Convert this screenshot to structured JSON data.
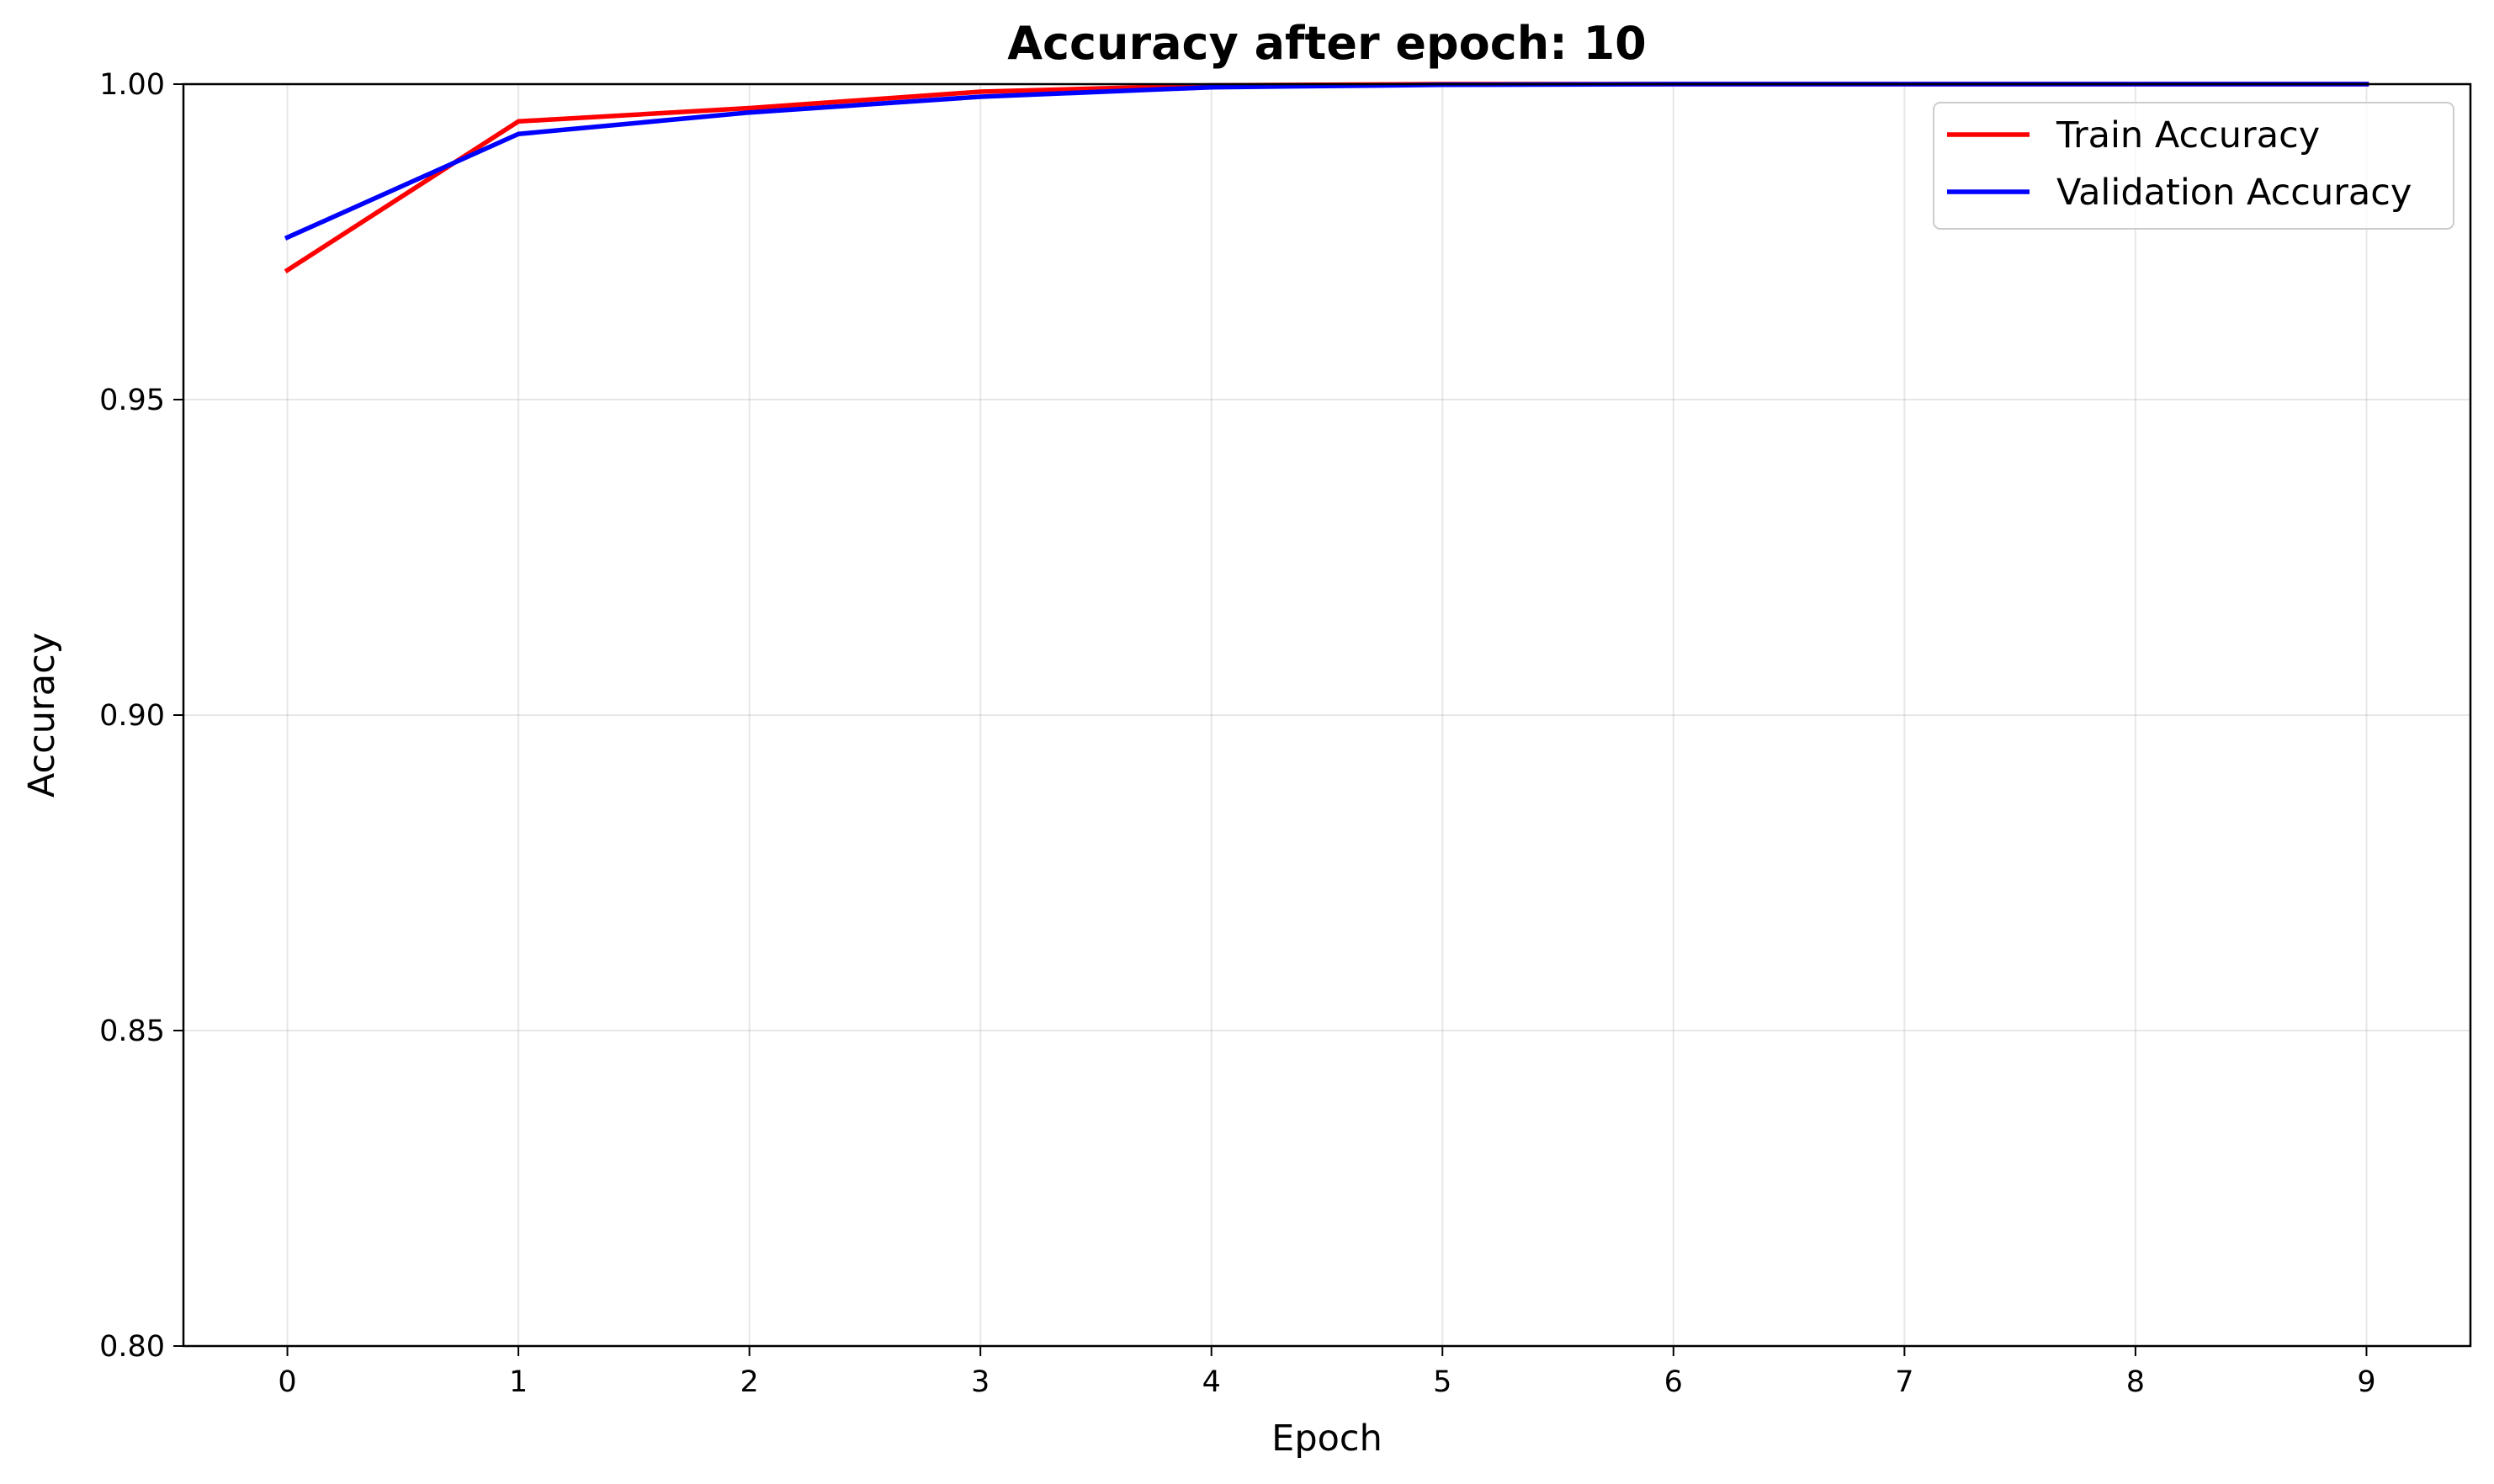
{
  "chart_data": {
    "type": "line",
    "title": "Accuracy after epoch: 10",
    "xlabel": "Epoch",
    "ylabel": "Accuracy",
    "x": [
      0,
      1,
      2,
      3,
      4,
      5,
      6,
      7,
      8,
      9
    ],
    "xlim": [
      -0.45,
      9.45
    ],
    "ylim": [
      0.8,
      1.0
    ],
    "xticks": [
      "0",
      "1",
      "2",
      "3",
      "4",
      "5",
      "6",
      "7",
      "8",
      "9"
    ],
    "yticks": [
      "0.80",
      "0.85",
      "0.90",
      "0.95",
      "1.00"
    ],
    "grid": true,
    "legend_position": "top-right",
    "series": [
      {
        "name": "Train Accuracy",
        "color": "#ff0000",
        "values": [
          0.9705,
          0.9941,
          0.9962,
          0.9988,
          0.9998,
          1.0,
          1.0,
          1.0,
          1.0,
          1.0
        ]
      },
      {
        "name": "Validation Accuracy",
        "color": "#0000ff",
        "values": [
          0.9757,
          0.9921,
          0.9955,
          0.998,
          0.9995,
          0.9999,
          1.0,
          1.0,
          1.0,
          1.0
        ]
      }
    ]
  }
}
